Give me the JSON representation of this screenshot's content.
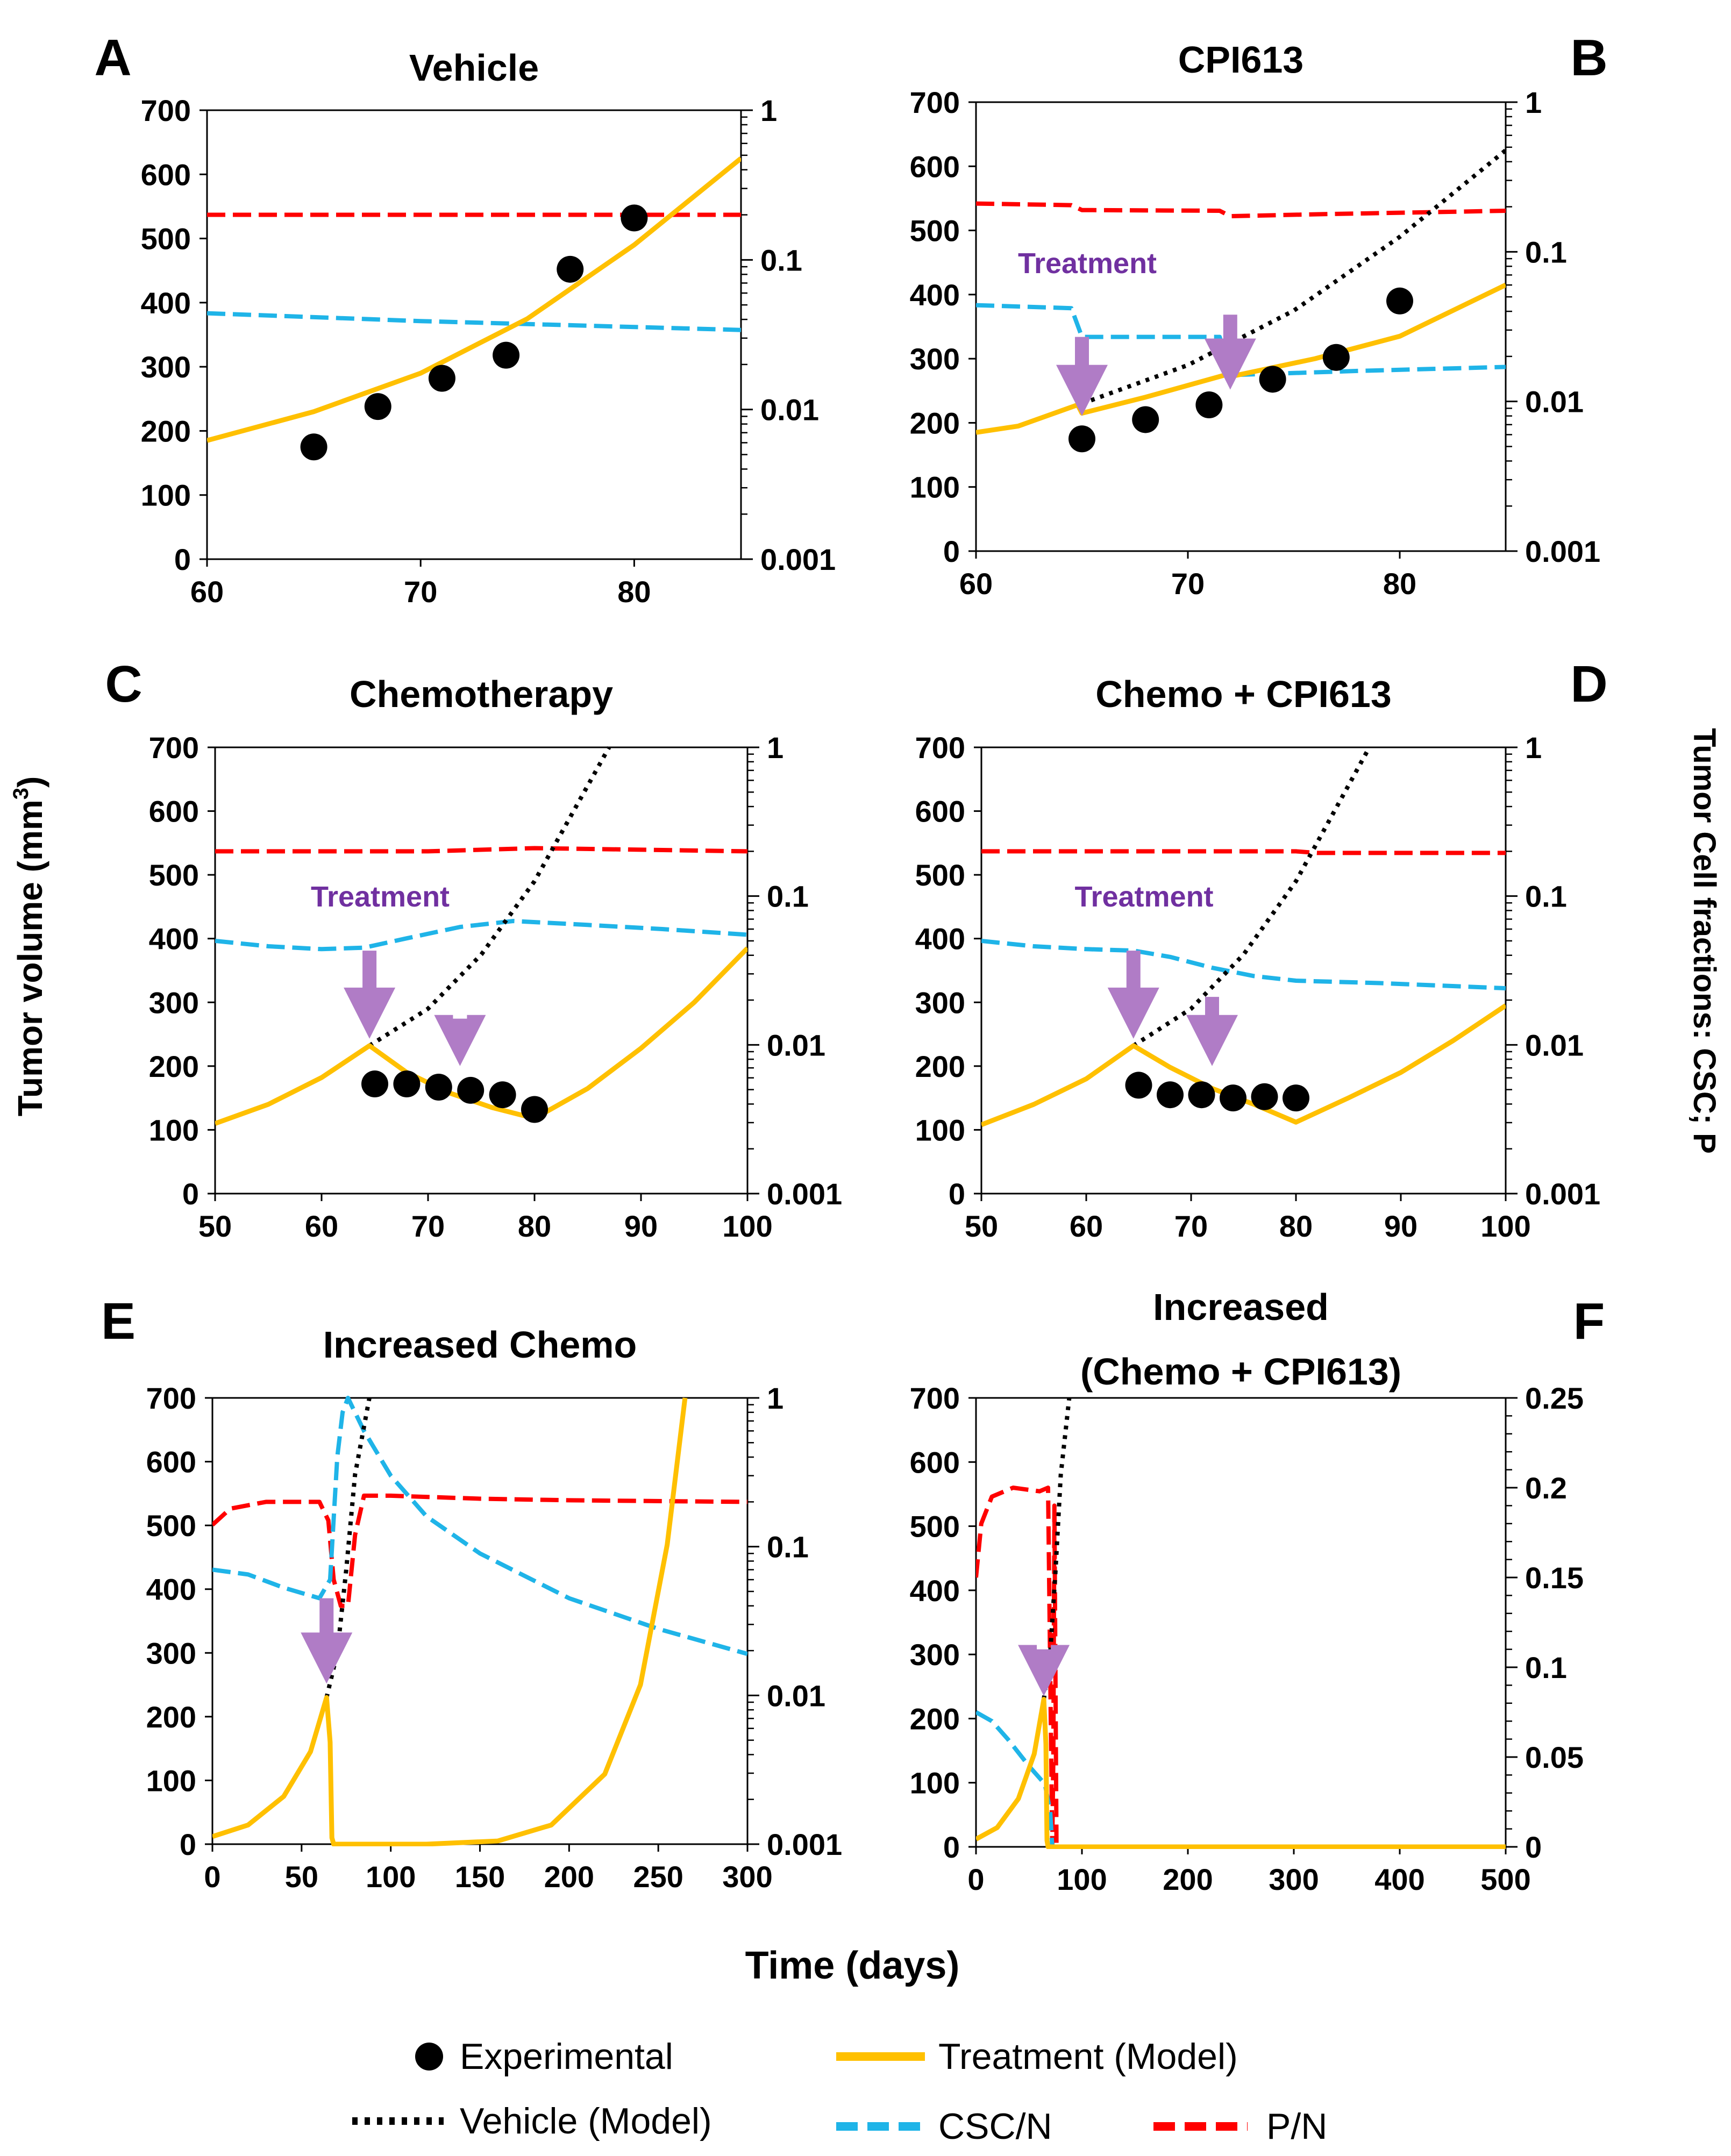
{
  "figure": {
    "y_title_left": "Tumor volume (mm",
    "y_title_left_sup": "3",
    "y_title_left_end": ")",
    "y_title_right": "Tumor Cell fractions:   CSC; P",
    "x_title": "Time (days)",
    "treatment_label": "Treatment"
  },
  "legend": {
    "experimental": "Experimental",
    "treatment_model": "Treatment (Model)",
    "vehicle_model": "Vehicle (Model)",
    "csc": "CSC/N",
    "p": "P/N"
  },
  "colors": {
    "treatment": "#ffc000",
    "vehicle": "#000000",
    "csc": "#1fb4e8",
    "p": "#ff0000",
    "arrow": "#b07cc6",
    "arrow_text": "#7030a0"
  },
  "chart_data": [
    {
      "letter": "A",
      "title": [
        "Vehicle"
      ],
      "type": "line",
      "xlim": [
        60,
        85
      ],
      "xticks": [
        60,
        70,
        80
      ],
      "xtick_labels": [
        "60",
        "70",
        "80"
      ],
      "ylim": [
        0,
        700
      ],
      "yticks": [
        0,
        100,
        200,
        300,
        400,
        500,
        600,
        700
      ],
      "ytick_labels": [
        "0",
        "100",
        "200",
        "300",
        "400",
        "500",
        "600",
        "700"
      ],
      "y2_scale": "log",
      "y2lim": [
        0.001,
        1
      ],
      "y2ticks": [
        0.001,
        0.01,
        0.1,
        1
      ],
      "y2tick_labels": [
        "0.001",
        "0.01",
        "0.1",
        "1"
      ],
      "treatment_model": [
        [
          60,
          185
        ],
        [
          65,
          230
        ],
        [
          70,
          290
        ],
        [
          75,
          375
        ],
        [
          80,
          490
        ],
        [
          85,
          625
        ]
      ],
      "vehicle_model": [],
      "csc": [
        [
          60,
          0.044
        ],
        [
          70,
          0.039
        ],
        [
          85,
          0.034
        ]
      ],
      "p": [
        [
          60,
          0.2
        ],
        [
          85,
          0.2
        ]
      ],
      "experimental": [
        [
          65,
          175
        ],
        [
          68,
          238
        ],
        [
          71,
          282
        ],
        [
          74,
          318
        ],
        [
          77,
          452
        ],
        [
          80,
          532
        ]
      ],
      "arrows": [],
      "label_position": null
    },
    {
      "letter": "B",
      "title": [
        "CPI613"
      ],
      "type": "line",
      "xlim": [
        60,
        85
      ],
      "xticks": [
        60,
        70,
        80
      ],
      "xtick_labels": [
        "60",
        "70",
        "80"
      ],
      "ylim": [
        0,
        700
      ],
      "yticks": [
        0,
        100,
        200,
        300,
        400,
        500,
        600,
        700
      ],
      "ytick_labels": [
        "0",
        "100",
        "200",
        "300",
        "400",
        "500",
        "600",
        "700"
      ],
      "y2_scale": "log",
      "y2lim": [
        0.001,
        1
      ],
      "y2ticks": [
        0.001,
        0.01,
        0.1,
        1
      ],
      "y2tick_labels": [
        "0.001",
        "0.01",
        "0.1",
        "1"
      ],
      "treatment_model": [
        [
          60,
          185
        ],
        [
          62,
          195
        ],
        [
          64.8,
          228
        ],
        [
          65,
          215
        ],
        [
          68,
          240
        ],
        [
          71.8,
          275
        ],
        [
          72,
          272
        ],
        [
          76,
          300
        ],
        [
          80,
          335
        ],
        [
          85,
          415
        ]
      ],
      "vehicle_model": [
        [
          65,
          230
        ],
        [
          70,
          290
        ],
        [
          75,
          375
        ],
        [
          80,
          490
        ],
        [
          85,
          625
        ]
      ],
      "csc": [
        [
          60,
          0.044
        ],
        [
          64.5,
          0.042
        ],
        [
          65,
          0.027
        ],
        [
          71.5,
          0.027
        ],
        [
          72,
          0.015
        ],
        [
          78,
          0.016
        ],
        [
          85,
          0.017
        ]
      ],
      "p": [
        [
          60,
          0.21
        ],
        [
          64.5,
          0.205
        ],
        [
          65,
          0.19
        ],
        [
          71.5,
          0.188
        ],
        [
          72,
          0.173
        ],
        [
          76,
          0.178
        ],
        [
          85,
          0.188
        ]
      ],
      "experimental": [
        [
          65,
          175
        ],
        [
          68,
          205
        ],
        [
          71,
          228
        ],
        [
          74,
          268
        ],
        [
          77,
          302
        ],
        [
          80,
          390
        ]
      ],
      "arrows": [
        [
          65,
          0.027,
          0.008
        ],
        [
          72,
          0.038,
          0.012
        ]
      ],
      "label_position": [
        65,
        0.072
      ]
    },
    {
      "letter": "C",
      "title": [
        "Chemotherapy"
      ],
      "type": "line",
      "xlim": [
        50,
        100
      ],
      "xticks": [
        50,
        60,
        70,
        80,
        90,
        100
      ],
      "xtick_labels": [
        "50",
        "60",
        "70",
        "80",
        "90",
        "100"
      ],
      "ylim": [
        0,
        700
      ],
      "yticks": [
        0,
        100,
        200,
        300,
        400,
        500,
        600,
        700
      ],
      "ytick_labels": [
        "0",
        "100",
        "200",
        "300",
        "400",
        "500",
        "600",
        "700"
      ],
      "y2_scale": "log",
      "y2lim": [
        0.001,
        1
      ],
      "y2ticks": [
        0.001,
        0.01,
        0.1,
        1
      ],
      "y2tick_labels": [
        "0.001",
        "0.01",
        "0.1",
        "1"
      ],
      "treatment_model": [
        [
          50,
          110
        ],
        [
          55,
          140
        ],
        [
          60,
          182
        ],
        [
          64.5,
          232
        ],
        [
          68,
          190
        ],
        [
          72,
          158
        ],
        [
          76,
          135
        ],
        [
          80,
          118
        ],
        [
          85,
          165
        ],
        [
          90,
          228
        ],
        [
          95,
          300
        ],
        [
          100,
          385
        ]
      ],
      "vehicle_model": [
        [
          64.5,
          232
        ],
        [
          70,
          290
        ],
        [
          75,
          375
        ],
        [
          80,
          490
        ],
        [
          84,
          610
        ],
        [
          87,
          700
        ]
      ],
      "csc": [
        [
          50,
          0.05
        ],
        [
          55,
          0.046
        ],
        [
          60,
          0.044
        ],
        [
          64,
          0.045
        ],
        [
          68,
          0.052
        ],
        [
          73,
          0.062
        ],
        [
          78,
          0.068
        ],
        [
          85,
          0.064
        ],
        [
          92,
          0.06
        ],
        [
          100,
          0.055
        ]
      ],
      "p": [
        [
          50,
          0.2
        ],
        [
          70,
          0.2
        ],
        [
          80,
          0.21
        ],
        [
          90,
          0.205
        ],
        [
          100,
          0.2
        ]
      ],
      "experimental": [
        [
          65,
          172
        ],
        [
          68,
          172
        ],
        [
          71,
          167
        ],
        [
          74,
          162
        ],
        [
          77,
          155
        ],
        [
          80,
          132
        ]
      ],
      "arrows": [
        [
          64.5,
          0.043,
          0.011
        ],
        [
          73,
          0.015,
          0.0072
        ]
      ],
      "label_position": [
        65,
        0.085
      ]
    },
    {
      "letter": "D",
      "title": [
        "Chemo + CPI613"
      ],
      "type": "line",
      "xlim": [
        50,
        100
      ],
      "xticks": [
        50,
        60,
        70,
        80,
        90,
        100
      ],
      "xtick_labels": [
        "50",
        "60",
        "70",
        "80",
        "90",
        "100"
      ],
      "ylim": [
        0,
        700
      ],
      "yticks": [
        0,
        100,
        200,
        300,
        400,
        500,
        600,
        700
      ],
      "ytick_labels": [
        "0",
        "100",
        "200",
        "300",
        "400",
        "500",
        "600",
        "700"
      ],
      "y2_scale": "log",
      "y2lim": [
        0.001,
        1
      ],
      "y2ticks": [
        0.001,
        0.01,
        0.1,
        1
      ],
      "y2tick_labels": [
        "0.001",
        "0.01",
        "0.1",
        "1"
      ],
      "treatment_model": [
        [
          50,
          108
        ],
        [
          55,
          140
        ],
        [
          60,
          180
        ],
        [
          64.5,
          232
        ],
        [
          68,
          198
        ],
        [
          72,
          165
        ],
        [
          76,
          140
        ],
        [
          80,
          112
        ],
        [
          85,
          150
        ],
        [
          90,
          190
        ],
        [
          95,
          240
        ],
        [
          100,
          295
        ]
      ],
      "vehicle_model": [
        [
          64.5,
          232
        ],
        [
          70,
          290
        ],
        [
          75,
          375
        ],
        [
          80,
          490
        ],
        [
          84,
          610
        ],
        [
          87,
          700
        ]
      ],
      "csc": [
        [
          50,
          0.05
        ],
        [
          55,
          0.046
        ],
        [
          60,
          0.044
        ],
        [
          64.5,
          0.043
        ],
        [
          68,
          0.039
        ],
        [
          72,
          0.033
        ],
        [
          76,
          0.029
        ],
        [
          80,
          0.027
        ],
        [
          88,
          0.026
        ],
        [
          100,
          0.024
        ]
      ],
      "p": [
        [
          50,
          0.2
        ],
        [
          80,
          0.2
        ],
        [
          82,
          0.195
        ],
        [
          100,
          0.195
        ]
      ],
      "experimental": [
        [
          65,
          170
        ],
        [
          68,
          155
        ],
        [
          71,
          155
        ],
        [
          74,
          150
        ],
        [
          77,
          152
        ],
        [
          80,
          150
        ]
      ],
      "arrows": [
        [
          64.5,
          0.043,
          0.011
        ],
        [
          72,
          0.021,
          0.0072
        ]
      ],
      "label_position": [
        65,
        0.085
      ]
    },
    {
      "letter": "E",
      "title": [
        "Increased Chemo"
      ],
      "type": "line",
      "xlim": [
        0,
        300
      ],
      "xticks": [
        0,
        50,
        100,
        150,
        200,
        250,
        300
      ],
      "xtick_labels": [
        "0",
        "50",
        "100",
        "150",
        "200",
        "250",
        "300"
      ],
      "ylim": [
        0,
        700
      ],
      "yticks": [
        0,
        100,
        200,
        300,
        400,
        500,
        600,
        700
      ],
      "ytick_labels": [
        "0",
        "100",
        "200",
        "300",
        "400",
        "500",
        "600",
        "700"
      ],
      "y2_scale": "log",
      "y2lim": [
        0.001,
        1
      ],
      "y2ticks": [
        0.001,
        0.01,
        0.1,
        1
      ],
      "y2tick_labels": [
        "0.001",
        "0.01",
        "0.1",
        "1"
      ],
      "treatment_model": [
        [
          0,
          12
        ],
        [
          20,
          30
        ],
        [
          40,
          75
        ],
        [
          55,
          145
        ],
        [
          64,
          230
        ],
        [
          66,
          160
        ],
        [
          67,
          10
        ],
        [
          68,
          0
        ],
        [
          120,
          0
        ],
        [
          160,
          5
        ],
        [
          190,
          30
        ],
        [
          220,
          110
        ],
        [
          240,
          250
        ],
        [
          255,
          470
        ],
        [
          265,
          700
        ]
      ],
      "vehicle_model": [
        [
          64,
          230
        ],
        [
          70,
          300
        ],
        [
          75,
          430
        ],
        [
          80,
          580
        ],
        [
          88,
          700
        ]
      ],
      "csc": [
        [
          0,
          0.07
        ],
        [
          20,
          0.065
        ],
        [
          40,
          0.053
        ],
        [
          60,
          0.045
        ],
        [
          66,
          0.06
        ],
        [
          70,
          0.4
        ],
        [
          73,
          0.8
        ],
        [
          76,
          1.0
        ],
        [
          85,
          0.6
        ],
        [
          100,
          0.3
        ],
        [
          120,
          0.16
        ],
        [
          150,
          0.09
        ],
        [
          200,
          0.045
        ],
        [
          250,
          0.028
        ],
        [
          300,
          0.019
        ]
      ],
      "p": [
        [
          0,
          0.14
        ],
        [
          10,
          0.18
        ],
        [
          30,
          0.2
        ],
        [
          60,
          0.2
        ],
        [
          65,
          0.15
        ],
        [
          68,
          0.06
        ],
        [
          72,
          0.04
        ],
        [
          76,
          0.04
        ],
        [
          80,
          0.12
        ],
        [
          85,
          0.22
        ],
        [
          100,
          0.22
        ],
        [
          150,
          0.21
        ],
        [
          200,
          0.205
        ],
        [
          300,
          0.2
        ]
      ],
      "experimental": [],
      "arrows": [
        [
          64,
          0.045,
          0.012
        ]
      ],
      "label_position": null
    },
    {
      "letter": "F",
      "title": [
        "Increased",
        "(Chemo + CPI613)"
      ],
      "type": "line",
      "xlim": [
        0,
        500
      ],
      "xticks": [
        0,
        100,
        200,
        300,
        400,
        500
      ],
      "xtick_labels": [
        "0",
        "100",
        "200",
        "300",
        "400",
        "500"
      ],
      "ylim": [
        0,
        700
      ],
      "yticks": [
        0,
        100,
        200,
        300,
        400,
        500,
        600,
        700
      ],
      "ytick_labels": [
        "0",
        "100",
        "200",
        "300",
        "400",
        "500",
        "600",
        "700"
      ],
      "y2_scale": "linear",
      "y2lim": [
        0,
        0.25
      ],
      "y2ticks": [
        0,
        0.05,
        0.1,
        0.15,
        0.2,
        0.25
      ],
      "y2tick_labels": [
        "0",
        "0.05",
        "0.1",
        "0.15",
        "0.2",
        "0.25"
      ],
      "treatment_model": [
        [
          0,
          12
        ],
        [
          20,
          30
        ],
        [
          40,
          75
        ],
        [
          55,
          145
        ],
        [
          64,
          230
        ],
        [
          66,
          160
        ],
        [
          67,
          10
        ],
        [
          68,
          0
        ],
        [
          500,
          0
        ]
      ],
      "vehicle_model": [
        [
          64,
          230
        ],
        [
          70,
          300
        ],
        [
          75,
          430
        ],
        [
          80,
          580
        ],
        [
          88,
          700
        ]
      ],
      "csc": [
        [
          0,
          0.075
        ],
        [
          15,
          0.07
        ],
        [
          30,
          0.06
        ],
        [
          50,
          0.045
        ],
        [
          65,
          0.035
        ],
        [
          70,
          0.02
        ],
        [
          72,
          0
        ],
        [
          500,
          0
        ]
      ],
      "p": [
        [
          0,
          0.15
        ],
        [
          5,
          0.18
        ],
        [
          15,
          0.195
        ],
        [
          35,
          0.2
        ],
        [
          60,
          0.198
        ],
        [
          68,
          0.2
        ],
        [
          70,
          0.1
        ],
        [
          71,
          0.05
        ],
        [
          72,
          0.0
        ],
        [
          73,
          0.05
        ],
        [
          74,
          0.19
        ],
        [
          76,
          0
        ],
        [
          500,
          0
        ]
      ],
      "experimental": [],
      "arrows": [
        [
          64,
          0.11,
          0.084
        ]
      ],
      "label_position": null
    }
  ]
}
